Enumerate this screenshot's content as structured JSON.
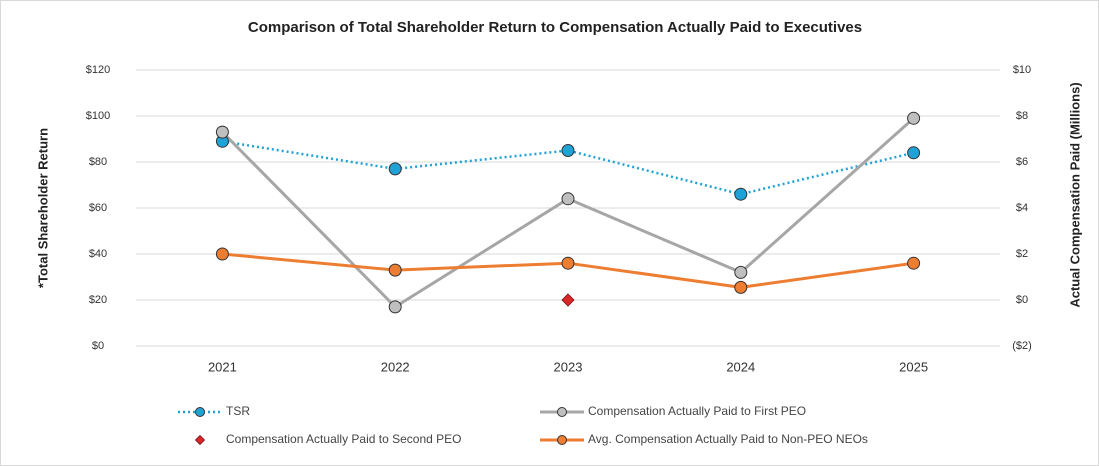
{
  "chart_data": {
    "type": "line",
    "title": "Comparison of Total Shareholder Return to Compensation Actually Paid to Executives",
    "ylabel": "*Total Shareholder Return",
    "y2label": "Actual Compensation Paid (Millions)",
    "categories": [
      "2021",
      "2022",
      "2023",
      "2024",
      "2025"
    ],
    "ylim": [
      0,
      120
    ],
    "yticks": [
      {
        "value": 0,
        "label": "$0"
      },
      {
        "value": 20,
        "label": "$20"
      },
      {
        "value": 40,
        "label": "$40"
      },
      {
        "value": 60,
        "label": "$60"
      },
      {
        "value": 80,
        "label": "$80"
      },
      {
        "value": 100,
        "label": "$100"
      },
      {
        "value": 120,
        "label": "$120"
      }
    ],
    "y2lim": [
      -2,
      10
    ],
    "y2ticks": [
      {
        "value": -2,
        "label": "($2)"
      },
      {
        "value": 0,
        "label": "$0"
      },
      {
        "value": 2,
        "label": "$2"
      },
      {
        "value": 4,
        "label": "$4"
      },
      {
        "value": 6,
        "label": "$6"
      },
      {
        "value": 8,
        "label": "$8"
      },
      {
        "value": 10,
        "label": "$10"
      }
    ],
    "grid": true,
    "legend": "bottom",
    "series": [
      {
        "name": "TSR",
        "color": "#1fa2d6",
        "style": "dotted",
        "marker": "circle",
        "values": [
          89,
          77,
          85,
          66,
          84
        ]
      },
      {
        "name": "Compensation Actually Paid to First PEO",
        "color": "#a6a6a6",
        "marker_color": "#bfbfbf",
        "style": "solid",
        "marker": "circle",
        "axis": "y2",
        "values": [
          7.3,
          -0.3,
          4.4,
          1.2,
          7.9
        ]
      },
      {
        "name": "Compensation Actually Paid to Second PEO",
        "color": "#d9262b",
        "style": "none",
        "marker": "diamond",
        "axis": "y2",
        "values": [
          null,
          null,
          0,
          null,
          null
        ]
      },
      {
        "name": "Avg. Compensation Actually Paid to Non-PEO NEOs",
        "color": "#ed7d31",
        "style": "solid",
        "marker": "circle",
        "axis": "y2",
        "values": [
          2.0,
          1.3,
          1.6,
          0.55,
          1.6
        ]
      }
    ]
  }
}
